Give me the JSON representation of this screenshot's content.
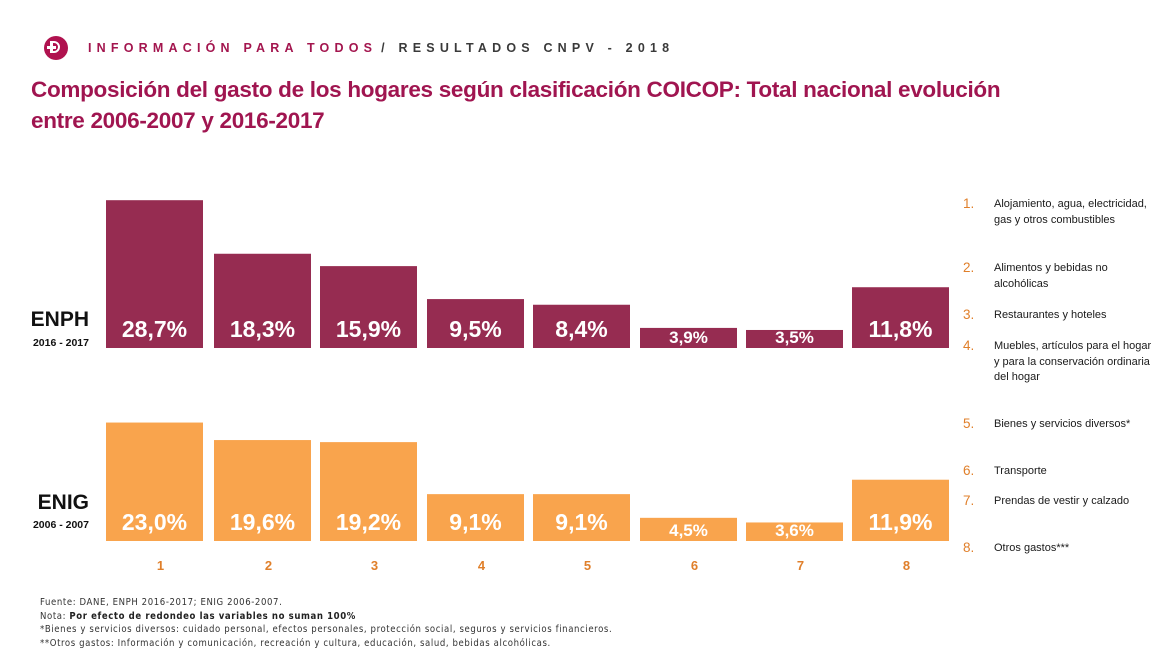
{
  "header": {
    "logo_icon": "dane-logo-icon",
    "tagline_highlight": "INFORMACIÓN PARA TODOS",
    "tagline_rest": "/ RESULTADOS CNPV - 2018"
  },
  "title": "Composición del gasto de los hogares según clasificación COICOP: Total nacional evolución entre 2006-2007 y 2016-2017",
  "colors": {
    "enph": "#962c51",
    "enig": "#f9a44d",
    "title": "#a01550",
    "legend_number": "#e07f2a",
    "category_label": "#e07f2a"
  },
  "chart_data": {
    "type": "bar",
    "title": "Composición del gasto de los hogares según clasificación COICOP: Total nacional evolución entre 2006-2007 y 2016-2017",
    "xlabel": "",
    "ylabel": "",
    "categories": [
      "1",
      "2",
      "3",
      "4",
      "5",
      "6",
      "7",
      "8"
    ],
    "series": [
      {
        "name": "ENPH",
        "period": "2016 - 2017",
        "values": [
          28.7,
          18.3,
          15.9,
          9.5,
          8.4,
          3.9,
          3.5,
          11.8
        ],
        "labels": [
          "28,7%",
          "18,3%",
          "15,9%",
          "9,5%",
          "8,4%",
          "3,9%",
          "3,5%",
          "11,8%"
        ]
      },
      {
        "name": "ENIG",
        "period": "2006 - 2007",
        "values": [
          23.0,
          19.6,
          19.2,
          9.1,
          9.1,
          4.5,
          3.6,
          11.9
        ],
        "labels": [
          "23,0%",
          "19,6%",
          "19,2%",
          "9,1%",
          "9,1%",
          "4,5%",
          "3,6%",
          "11,9%"
        ]
      }
    ],
    "grid": false,
    "legend_position": "right",
    "unit": "%"
  },
  "legend": {
    "items": [
      {
        "number": "1.",
        "label": "Alojamiento, agua, electricidad, gas y otros combustibles"
      },
      {
        "number": "2.",
        "label": "Alimentos y bebidas no alcohólicas"
      },
      {
        "number": "3.",
        "label": "Restaurantes y hoteles"
      },
      {
        "number": "4.",
        "label": "Muebles, artículos para el hogar y para la conservación ordinaria del hogar"
      },
      {
        "number": "5.",
        "label": "Bienes y servicios diversos*"
      },
      {
        "number": "6.",
        "label": "Transporte"
      },
      {
        "number": "7.",
        "label": "Prendas de vestir y calzado"
      },
      {
        "number": "8.",
        "label": "Otros gastos***"
      }
    ]
  },
  "footer": {
    "source_label": "Fuente:",
    "source_text": " DANE, ENPH 2016-2017; ENIG 2006-2007.",
    "note_label": "Nota: ",
    "note_text": "Por efecto de redondeo las variables no suman 100%",
    "footnote1": "*Bienes y servicios diversos: cuidado personal, efectos personales, protección social, seguros y servicios financieros.",
    "footnote2": "**Otros gastos: Información y comunicación, recreación y cultura, educación, salud, bebidas alcohólicas."
  }
}
